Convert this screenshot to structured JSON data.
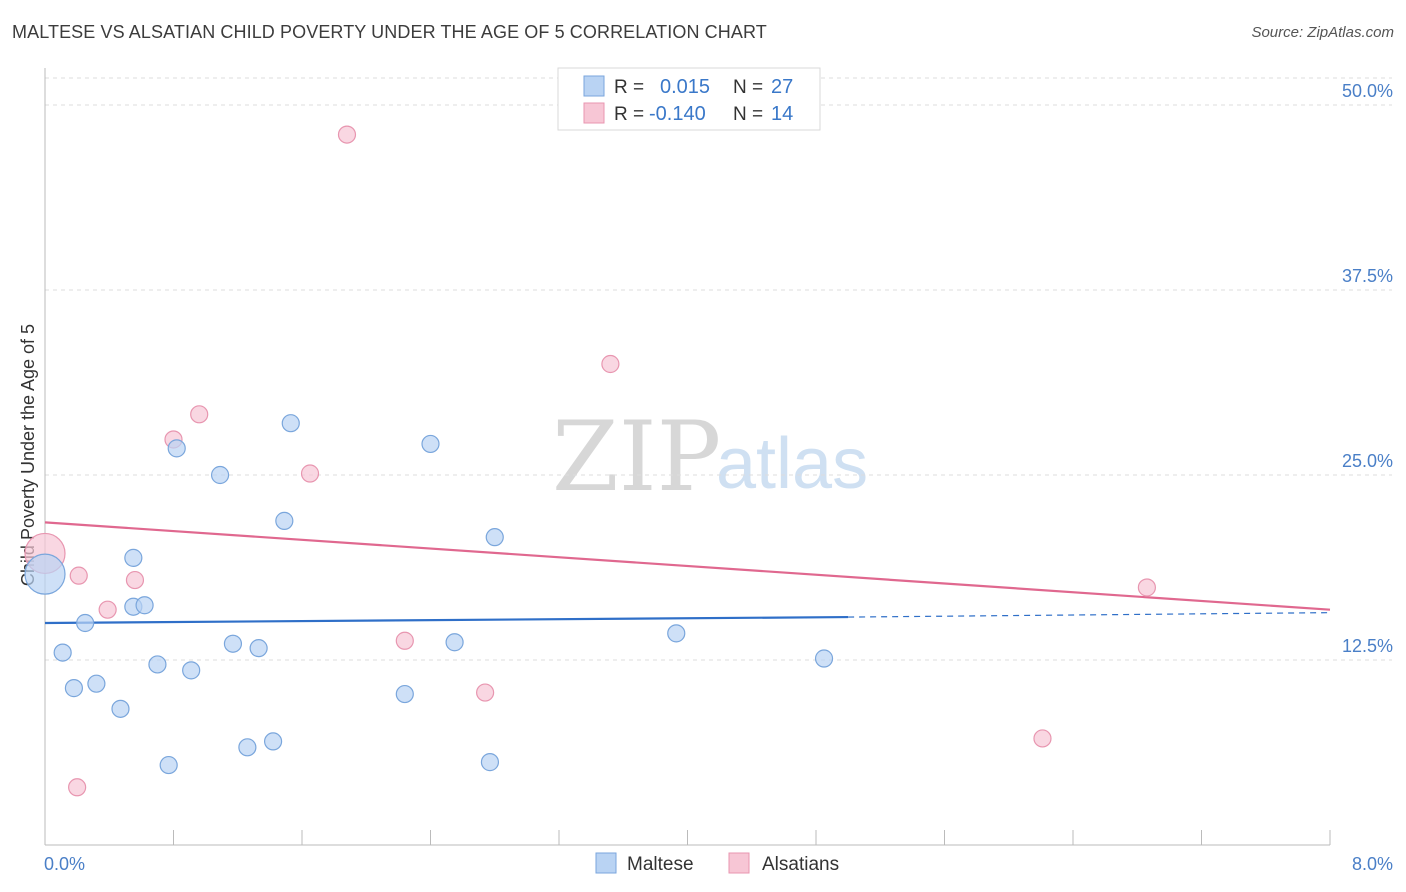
{
  "title": "MALTESE VS ALSATIAN CHILD POVERTY UNDER THE AGE OF 5 CORRELATION CHART",
  "source": "Source: ZipAtlas.com",
  "watermark": {
    "zip": "ZIP",
    "atlas": "atlas"
  },
  "colors": {
    "maltese_fill": "#b9d3f3",
    "maltese_stroke": "#7aa6dc",
    "maltese_line": "#2f6fc8",
    "alsatian_fill": "#f7c6d5",
    "alsatian_stroke": "#e896b0",
    "alsatian_line": "#e0688f",
    "grid": "#dddddd",
    "axis": "#bbbbbb",
    "label": "#4a7fc7"
  },
  "legend_top": [
    {
      "r_label": "R =",
      "r_value": "0.015",
      "n_label": "N =",
      "n_value": "27"
    },
    {
      "r_label": "R =",
      "r_value": "-0.140",
      "n_label": "N =",
      "n_value": "14"
    }
  ],
  "chart_data": {
    "type": "scatter",
    "title": "MALTESE VS ALSATIAN CHILD POVERTY UNDER THE AGE OF 5 CORRELATION CHART",
    "xlabel": "",
    "ylabel": "Child Poverty Under the Age of 5",
    "xlim": [
      0,
      8
    ],
    "ylim": [
      0,
      52.5
    ],
    "x_tick_labels": [
      "0.0%",
      "8.0%"
    ],
    "y_ticks": [
      12.5,
      25.0,
      37.5,
      50.0
    ],
    "y_tick_labels": [
      "12.5%",
      "25.0%",
      "37.5%",
      "50.0%"
    ],
    "grid": true,
    "legend_position": "bottom-center",
    "series": [
      {
        "name": "Maltese",
        "r": 0.015,
        "n": 27,
        "trend": {
          "x0": 0.0,
          "y0": 15.0,
          "x1": 5.0,
          "y1": 15.4,
          "dashed_to_x": 8.0,
          "dashed_to_y": 15.7
        },
        "points": [
          {
            "x": 0.0,
            "y": 18.3,
            "big": true
          },
          {
            "x": 0.11,
            "y": 13.0
          },
          {
            "x": 0.18,
            "y": 10.6
          },
          {
            "x": 0.25,
            "y": 15.0
          },
          {
            "x": 0.32,
            "y": 10.9
          },
          {
            "x": 0.47,
            "y": 9.2
          },
          {
            "x": 0.55,
            "y": 16.1
          },
          {
            "x": 0.55,
            "y": 19.4
          },
          {
            "x": 0.62,
            "y": 16.2
          },
          {
            "x": 0.7,
            "y": 12.2
          },
          {
            "x": 0.77,
            "y": 5.4
          },
          {
            "x": 0.82,
            "y": 26.8
          },
          {
            "x": 0.91,
            "y": 11.8
          },
          {
            "x": 1.09,
            "y": 25.0
          },
          {
            "x": 1.17,
            "y": 13.6
          },
          {
            "x": 1.26,
            "y": 6.6
          },
          {
            "x": 1.33,
            "y": 13.3
          },
          {
            "x": 1.42,
            "y": 7.0
          },
          {
            "x": 1.49,
            "y": 21.9
          },
          {
            "x": 1.53,
            "y": 28.5
          },
          {
            "x": 2.24,
            "y": 10.2
          },
          {
            "x": 2.4,
            "y": 27.1
          },
          {
            "x": 2.55,
            "y": 13.7
          },
          {
            "x": 2.77,
            "y": 5.6
          },
          {
            "x": 2.8,
            "y": 20.8
          },
          {
            "x": 3.93,
            "y": 14.3
          },
          {
            "x": 4.85,
            "y": 12.6
          }
        ]
      },
      {
        "name": "Alsatians",
        "r": -0.14,
        "n": 14,
        "trend": {
          "x0": 0.0,
          "y0": 21.8,
          "x1": 8.0,
          "y1": 15.9
        },
        "points": [
          {
            "x": 0.0,
            "y": 19.7,
            "big": true
          },
          {
            "x": 0.21,
            "y": 18.2
          },
          {
            "x": 0.39,
            "y": 15.9
          },
          {
            "x": 0.56,
            "y": 17.9
          },
          {
            "x": 0.8,
            "y": 27.4
          },
          {
            "x": 0.96,
            "y": 29.1
          },
          {
            "x": 1.65,
            "y": 25.1
          },
          {
            "x": 1.88,
            "y": 48.0
          },
          {
            "x": 2.24,
            "y": 13.8
          },
          {
            "x": 2.74,
            "y": 10.3
          },
          {
            "x": 3.52,
            "y": 32.5
          },
          {
            "x": 6.21,
            "y": 7.2
          },
          {
            "x": 6.86,
            "y": 17.4
          },
          {
            "x": 0.2,
            "y": 3.9
          }
        ]
      }
    ]
  }
}
